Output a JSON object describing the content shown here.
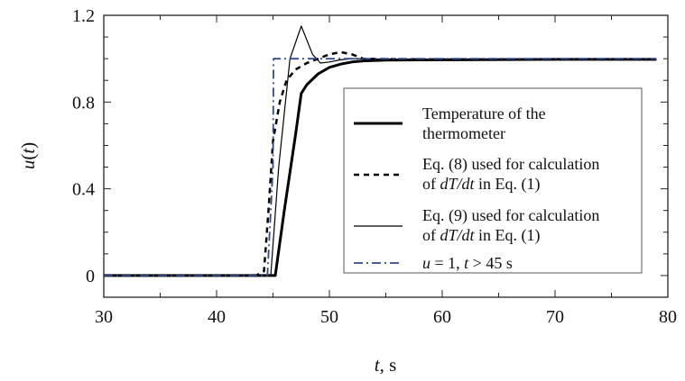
{
  "chart_data": {
    "type": "line",
    "title": "",
    "xlabel": {
      "italic": "t",
      "rest": ", s"
    },
    "ylabel": {
      "italic": "u",
      "rest": "(",
      "var": "t",
      "close": ")"
    },
    "xlim": [
      30,
      80
    ],
    "ylim": [
      -0.1,
      1.2
    ],
    "xticks": [
      30,
      40,
      50,
      60,
      70,
      80
    ],
    "yticks": [
      0,
      0.4,
      0.8,
      1.2
    ],
    "ytick_labels": [
      "0",
      "0.4",
      "0.8",
      "1.2"
    ],
    "grid": false,
    "legend_position": "right",
    "series": [
      {
        "name": "Temperature of the thermometer",
        "legend_lines": [
          {
            "text": "Temperature of the"
          },
          {
            "text": "thermometer"
          }
        ],
        "style": "solid-thick",
        "color": "#000000",
        "x": [
          30,
          44,
          45.2,
          46,
          47,
          47.5,
          48,
          49,
          50,
          51,
          52,
          53,
          55,
          60,
          70,
          79
        ],
        "y": [
          0,
          0,
          0,
          0.3,
          0.65,
          0.84,
          0.88,
          0.93,
          0.96,
          0.975,
          0.985,
          0.99,
          0.993,
          0.995,
          0.997,
          0.997
        ]
      },
      {
        "name": "Eq. (8) used for calculation of dT/dt in Eq. (1)",
        "legend_lines": [
          {
            "text": "Eq. (8) used for calculation"
          },
          {
            "pre": "of ",
            "italic": "dT/dt",
            "post": " in Eq. (1)"
          }
        ],
        "style": "dashed",
        "color": "#000000",
        "x": [
          31,
          43.5,
          44.2,
          44.6,
          45,
          45.6,
          46.2,
          47,
          48,
          49,
          50,
          51,
          52,
          53,
          55,
          60,
          70,
          79
        ],
        "y": [
          0,
          0,
          0.02,
          0.3,
          0.62,
          0.8,
          0.9,
          0.95,
          0.98,
          1.0,
          1.02,
          1.03,
          1.02,
          1.0,
          0.998,
          0.997,
          0.997,
          0.997
        ]
      },
      {
        "name": "Eq. (9) used for calculation of dT/dt in Eq. (1)",
        "legend_lines": [
          {
            "text": "Eq. (9) used for calculation"
          },
          {
            "pre": "of ",
            "italic": "dT/dt",
            "post": " in Eq. (1)"
          }
        ],
        "style": "solid-thin",
        "color": "#000000",
        "x": [
          30,
          44.8,
          45.5,
          46.5,
          47.5,
          48.5,
          49.2,
          50,
          51,
          52,
          53,
          55,
          60,
          70,
          79
        ],
        "y": [
          0,
          0,
          0.5,
          1.0,
          1.15,
          1.02,
          0.98,
          0.985,
          0.995,
          1.0,
          1.0,
          0.998,
          0.997,
          0.997,
          0.997
        ]
      },
      {
        "name": "u = 1, t > 45 s",
        "legend_lines": [
          {
            "italic_a": "u",
            "mid": " = 1, ",
            "italic_b": "t",
            "post": " > 45 s"
          }
        ],
        "style": "dashdot",
        "color": "#2e4a8c",
        "x": [
          30,
          44.5,
          45,
          45.05,
          79
        ],
        "y": [
          0,
          0,
          0.5,
          1.0,
          1.0
        ]
      }
    ]
  }
}
